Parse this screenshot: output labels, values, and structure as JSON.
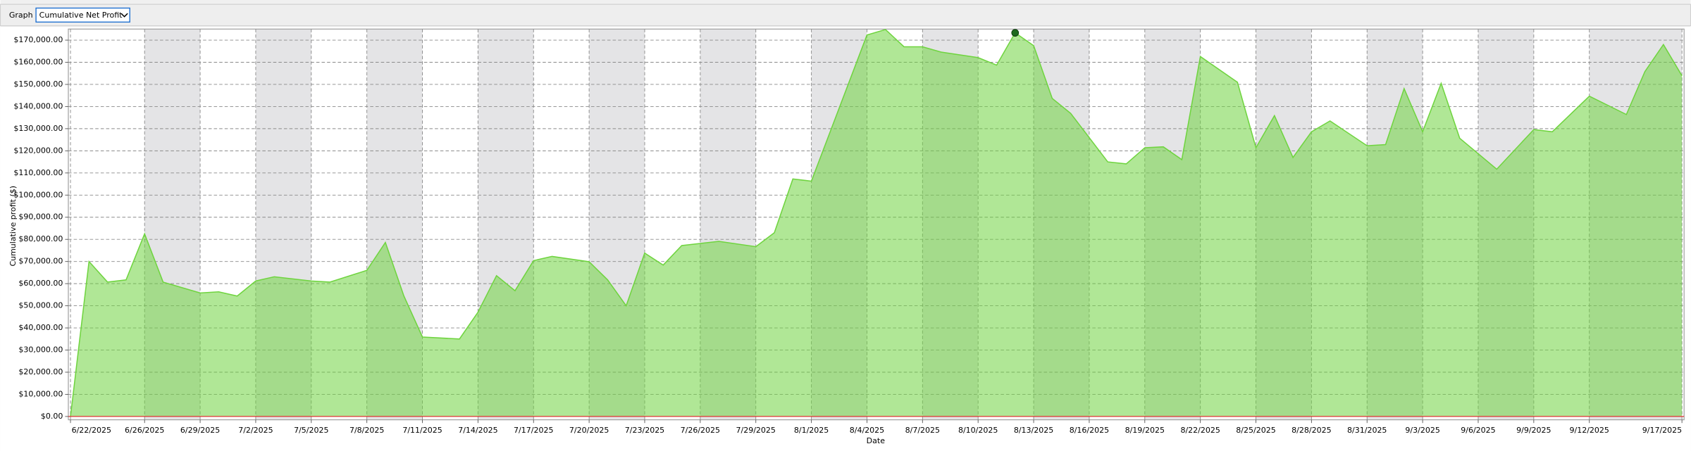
{
  "toolbar": {
    "label": "Graph",
    "selected": "Cumulative Net Profit"
  },
  "chart_data": {
    "type": "area",
    "ylabel": "Cumulative profit ($)",
    "xlabel": "Date",
    "x": [
      "6/22/2025",
      "6/23/2025",
      "6/24/2025",
      "6/25/2025",
      "6/26/2025",
      "6/27/2025",
      "6/29/2025",
      "6/30/2025",
      "7/1/2025",
      "7/2/2025",
      "7/3/2025",
      "7/5/2025",
      "7/6/2025",
      "7/8/2025",
      "7/9/2025",
      "7/10/2025",
      "7/11/2025",
      "7/13/2025",
      "7/14/2025",
      "7/15/2025",
      "7/16/2025",
      "7/17/2025",
      "7/18/2025",
      "7/20/2025",
      "7/21/2025",
      "7/22/2025",
      "7/23/2025",
      "7/24/2025",
      "7/25/2025",
      "7/27/2025",
      "7/29/2025",
      "7/30/2025",
      "7/31/2025",
      "8/1/2025",
      "8/4/2025",
      "8/5/2025",
      "8/6/2025",
      "8/7/2025",
      "8/8/2025",
      "8/10/2025",
      "8/11/2025",
      "8/12/2025",
      "8/13/2025",
      "8/14/2025",
      "8/15/2025",
      "8/17/2025",
      "8/18/2025",
      "8/19/2025",
      "8/20/2025",
      "8/21/2025",
      "8/22/2025",
      "8/24/2025",
      "8/25/2025",
      "8/26/2025",
      "8/27/2025",
      "8/28/2025",
      "8/29/2025",
      "8/31/2025",
      "9/1/2025",
      "9/2/2025",
      "9/3/2025",
      "9/4/2025",
      "9/5/2025",
      "9/7/2025",
      "9/9/2025",
      "9/10/2025",
      "9/12/2025",
      "9/14/2025",
      "9/15/2025",
      "9/16/2025",
      "9/17/2025"
    ],
    "series": [
      {
        "name": "Cumulative Net Profit",
        "color": "#6fd43f",
        "values": [
          0,
          70000,
          60700,
          61700,
          82500,
          60700,
          55800,
          56300,
          54400,
          61200,
          63100,
          61200,
          60700,
          66000,
          78600,
          54400,
          35900,
          35000,
          47100,
          63600,
          56800,
          70400,
          72300,
          69900,
          61700,
          50000,
          73800,
          68400,
          77200,
          79100,
          76700,
          83000,
          107300,
          106300,
          172300,
          174800,
          167000,
          167000,
          164600,
          162100,
          158700,
          173300,
          167500,
          143700,
          136900,
          115000,
          114100,
          121400,
          121800,
          116000,
          162600,
          151000,
          121400,
          135900,
          117000,
          128600,
          133500,
          122300,
          122800,
          148100,
          128600,
          150500,
          125700,
          111700,
          129600,
          128600,
          144700,
          136400,
          155800,
          168000,
          153900
        ]
      }
    ],
    "highlight": "8/12/2025",
    "xlim": [
      "6/22/2025",
      "9/17/2025"
    ],
    "xticks": [
      "6/22/2025",
      "6/26/2025",
      "6/29/2025",
      "7/2/2025",
      "7/5/2025",
      "7/8/2025",
      "7/11/2025",
      "7/14/2025",
      "7/17/2025",
      "7/20/2025",
      "7/23/2025",
      "7/26/2025",
      "7/29/2025",
      "8/1/2025",
      "8/4/2025",
      "8/7/2025",
      "8/10/2025",
      "8/13/2025",
      "8/16/2025",
      "8/19/2025",
      "8/22/2025",
      "8/25/2025",
      "8/28/2025",
      "8/31/2025",
      "9/3/2025",
      "9/6/2025",
      "9/9/2025",
      "9/12/2025",
      "9/17/2025"
    ],
    "ylim": [
      -1500,
      175000
    ],
    "yticks": [
      {
        "value": 0,
        "label": "$0.00"
      },
      {
        "value": 10000,
        "label": "$10,000.00"
      },
      {
        "value": 20000,
        "label": "$20,000.00"
      },
      {
        "value": 30000,
        "label": "$30,000.00"
      },
      {
        "value": 40000,
        "label": "$40,000.00"
      },
      {
        "value": 50000,
        "label": "$50,000.00"
      },
      {
        "value": 60000,
        "label": "$60,000.00"
      },
      {
        "value": 70000,
        "label": "$70,000.00"
      },
      {
        "value": 80000,
        "label": "$80,000.00"
      },
      {
        "value": 90000,
        "label": "$90,000.00"
      },
      {
        "value": 100000,
        "label": "$100,000.00"
      },
      {
        "value": 110000,
        "label": "$110,000.00"
      },
      {
        "value": 120000,
        "label": "$120,000.00"
      },
      {
        "value": 130000,
        "label": "$130,000.00"
      },
      {
        "value": 140000,
        "label": "$140,000.00"
      },
      {
        "value": 150000,
        "label": "$150,000.00"
      },
      {
        "value": 160000,
        "label": "$160,000.00"
      },
      {
        "value": 170000,
        "label": "$170,000.00"
      }
    ],
    "grid": true
  }
}
